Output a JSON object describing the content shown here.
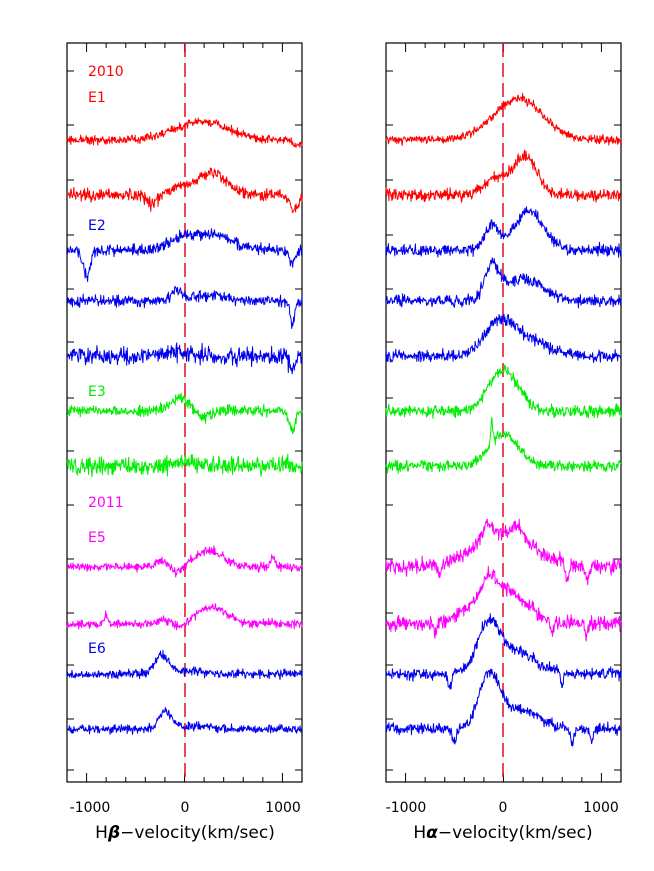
{
  "chart_data": [
    {
      "type": "line",
      "panel": "left",
      "xlabel_main": "H",
      "xlabel_greek": "β",
      "xlabel_rest": "−velocity(km/sec)",
      "xlim": [
        -1200,
        1200
      ],
      "xticks": [
        -1000,
        0,
        1000
      ],
      "xtick_labels": [
        "-1000",
        "0",
        "1000"
      ],
      "reference_line_x": 0,
      "colors": {
        "2010": "#ff0000",
        "E1": "#ff0000",
        "E2": "#0000ee",
        "E3": "#00ee00",
        "2011": "#ff00ff",
        "E5": "#ff00ff",
        "E6": "#0000ee"
      },
      "annotations": [
        {
          "text": "2010",
          "slot": 0,
          "color": "#ff0000"
        },
        {
          "text": "E1",
          "slot": 1,
          "color": "#ff0000"
        },
        {
          "text": "E2",
          "slot": 2,
          "color": "#0000ee"
        },
        {
          "text": "E3",
          "slot": 3,
          "color": "#00ee00"
        },
        {
          "text": "2011",
          "slot": 4,
          "color": "#ff00ff"
        },
        {
          "text": "E5",
          "slot": 5,
          "color": "#ff00ff"
        },
        {
          "text": "E6",
          "slot": 6,
          "color": "#0000ee"
        }
      ],
      "series": [
        {
          "name": "E1-a",
          "color": "#ff0000",
          "noise": 3,
          "features": [
            [
              250,
              250,
              -14
            ],
            [
              -10,
              250,
              -6
            ],
            [
              1150,
              40,
              6
            ]
          ]
        },
        {
          "name": "E1-b",
          "color": "#ff0000",
          "noise": 4,
          "features": [
            [
              280,
              150,
              -22
            ],
            [
              -40,
              100,
              -8
            ],
            [
              -330,
              50,
              10
            ],
            [
              1120,
              40,
              15
            ]
          ]
        },
        {
          "name": "E2-a",
          "color": "#0000ee",
          "noise": 4,
          "features": [
            [
              250,
              220,
              -16
            ],
            [
              -50,
              100,
              -8
            ],
            [
              -1000,
              35,
              26
            ],
            [
              1100,
              30,
              14
            ]
          ]
        },
        {
          "name": "E2-b",
          "color": "#0000ee",
          "noise": 4,
          "features": [
            [
              -80,
              50,
              -12
            ],
            [
              250,
              200,
              -5
            ],
            [
              1100,
              25,
              22
            ]
          ]
        },
        {
          "name": "E2-c",
          "color": "#0000ee",
          "noise": 6,
          "features": [
            [
              0,
              200,
              -3
            ],
            [
              1100,
              25,
              16
            ]
          ]
        },
        {
          "name": "E3-a",
          "color": "#00ee00",
          "noise": 4,
          "features": [
            [
              -30,
              100,
              -14
            ],
            [
              150,
              100,
              6
            ],
            [
              1100,
              30,
              20
            ]
          ]
        },
        {
          "name": "E3-b",
          "color": "#00ee00",
          "noise": 6,
          "features": [
            [
              0,
              100,
              -5
            ]
          ]
        },
        {
          "name": "E5-a",
          "color": "#ff00ff",
          "noise": 3,
          "features": [
            [
              250,
              150,
              -16
            ],
            [
              -230,
              50,
              -6
            ],
            [
              -70,
              50,
              6
            ],
            [
              900,
              20,
              -12
            ]
          ]
        },
        {
          "name": "E5-b",
          "color": "#ff00ff",
          "noise": 3,
          "features": [
            [
              280,
              150,
              -17
            ],
            [
              -200,
              60,
              -5
            ],
            [
              -50,
              60,
              5
            ],
            [
              -800,
              15,
              -10
            ]
          ]
        },
        {
          "name": "E6-a",
          "color": "#0000ee",
          "noise": 3,
          "features": [
            [
              -230,
              70,
              -18
            ],
            [
              0,
              200,
              -3
            ]
          ]
        },
        {
          "name": "E6-b",
          "color": "#0000ee",
          "noise": 3,
          "features": [
            [
              -200,
              60,
              -18
            ],
            [
              100,
              200,
              -3
            ]
          ]
        }
      ]
    },
    {
      "type": "line",
      "panel": "right",
      "xlabel_main": "H",
      "xlabel_greek": "α",
      "xlabel_rest": "−velocity(km/sec)",
      "xlim": [
        -1200,
        1200
      ],
      "xticks": [
        -1000,
        0,
        1000
      ],
      "xtick_labels": [
        "-1000",
        "0",
        "1000"
      ],
      "reference_line_x": 0,
      "series": [
        {
          "name": "E1-a",
          "color": "#ff0000",
          "noise": 3,
          "features": [
            [
              150,
              250,
              -42
            ]
          ]
        },
        {
          "name": "E1-b",
          "color": "#ff0000",
          "noise": 4,
          "features": [
            [
              220,
              120,
              -38
            ],
            [
              -80,
              120,
              -16
            ]
          ]
        },
        {
          "name": "E2-a",
          "color": "#0000ee",
          "noise": 4,
          "features": [
            [
              260,
              150,
              -38
            ],
            [
              -120,
              70,
              -24
            ]
          ]
        },
        {
          "name": "E2-b",
          "color": "#0000ee",
          "noise": 4,
          "features": [
            [
              -120,
              70,
              -32
            ],
            [
              200,
              200,
              -22
            ]
          ]
        },
        {
          "name": "E2-c",
          "color": "#0000ee",
          "noise": 4,
          "features": [
            [
              -50,
              150,
              -32
            ],
            [
              250,
              200,
              -16
            ]
          ]
        },
        {
          "name": "E3-a",
          "color": "#00ee00",
          "noise": 4,
          "features": [
            [
              0,
              150,
              -42
            ]
          ]
        },
        {
          "name": "E3-b",
          "color": "#00ee00",
          "noise": 4,
          "features": [
            [
              0,
              150,
              -32
            ],
            [
              -120,
              10,
              -22
            ]
          ]
        },
        {
          "name": "E5-a",
          "color": "#ff00ff",
          "noise": 5,
          "features": [
            [
              0,
              300,
              -34
            ],
            [
              -170,
              50,
              -14
            ],
            [
              150,
              50,
              -12
            ],
            [
              -650,
              15,
              14
            ],
            [
              650,
              15,
              16
            ],
            [
              850,
              15,
              14
            ]
          ]
        },
        {
          "name": "E5-b",
          "color": "#ff00ff",
          "noise": 5,
          "features": [
            [
              -50,
              250,
              -38
            ],
            [
              -150,
              60,
              -14
            ],
            [
              -700,
              15,
              12
            ],
            [
              500,
              15,
              14
            ],
            [
              850,
              15,
              14
            ]
          ]
        },
        {
          "name": "E6-a",
          "color": "#0000ee",
          "noise": 4,
          "features": [
            [
              -150,
              120,
              -48
            ],
            [
              150,
              200,
              -20
            ],
            [
              -550,
              20,
              12
            ],
            [
              600,
              15,
              14
            ]
          ]
        },
        {
          "name": "E6-b",
          "color": "#0000ee",
          "noise": 4,
          "features": [
            [
              -150,
              100,
              -52
            ],
            [
              150,
              200,
              -20
            ],
            [
              -500,
              20,
              14
            ],
            [
              700,
              20,
              14
            ],
            [
              900,
              15,
              14
            ]
          ]
        }
      ]
    }
  ]
}
